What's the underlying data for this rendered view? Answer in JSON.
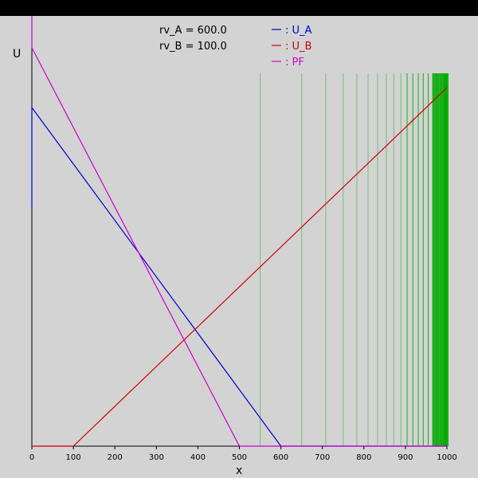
{
  "chart_data": {
    "type": "line",
    "xlabel": "x",
    "ylabel": "U",
    "xlim": [
      0,
      1000
    ],
    "x_ticks": [
      "0",
      "100",
      "200",
      "300",
      "400",
      "500",
      "600",
      "700",
      "800",
      "900",
      "1000"
    ],
    "info_lines": [
      "rv_A = 600.0",
      "rv_B = 100.0"
    ],
    "legend_position": "top-center",
    "series": [
      {
        "name": ": U_A",
        "color": "#0000cc",
        "x": [
          0,
          0,
          0,
          600,
          1000
        ],
        "y": [
          600,
          800,
          850,
          0,
          0
        ]
      },
      {
        "name": ": U_B",
        "color": "#cc0000",
        "x": [
          0,
          100,
          1000
        ],
        "y": [
          0,
          0,
          900
        ]
      },
      {
        "name": ": PF",
        "color": "#cc00cc",
        "x": [
          0,
          0,
          0,
          500,
          1000
        ],
        "y": [
          1000,
          1600,
          1000,
          0,
          0
        ]
      }
    ],
    "green_lines": {
      "color": "#00aa00",
      "x": [
        550,
        650,
        708,
        750,
        783,
        810,
        833,
        854,
        872,
        889,
        904,
        918,
        931,
        943,
        955,
        966,
        976,
        986,
        995,
        1000
      ]
    }
  }
}
